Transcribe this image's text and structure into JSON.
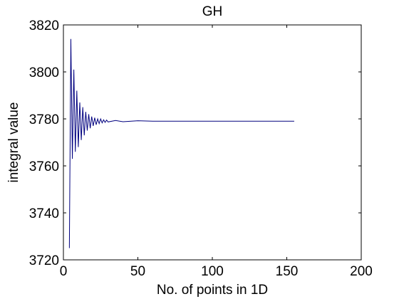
{
  "chart_data": {
    "type": "line",
    "title": "GH",
    "xlabel": "No. of points in 1D",
    "ylabel": "integral value",
    "xlim": [
      0,
      200
    ],
    "ylim": [
      3720,
      3820
    ],
    "xticks": [
      0,
      50,
      100,
      150,
      200
    ],
    "yticks": [
      3720,
      3740,
      3760,
      3780,
      3800,
      3820
    ],
    "grid": false,
    "legend": "none",
    "series": [
      {
        "color": "#00007f",
        "x": [
          4,
          5,
          6,
          7,
          8,
          9,
          10,
          11,
          12,
          13,
          14,
          15,
          16,
          17,
          18,
          19,
          20,
          21,
          22,
          23,
          24,
          25,
          26,
          27,
          28,
          29,
          30,
          35,
          40,
          50,
          60,
          80,
          100,
          120,
          140,
          155
        ],
        "y": [
          3725,
          3814,
          3763,
          3801,
          3766,
          3792,
          3768,
          3787,
          3771,
          3785,
          3773,
          3783,
          3775,
          3782,
          3776,
          3781,
          3777,
          3780.5,
          3777.5,
          3780,
          3778,
          3780,
          3778.3,
          3779.6,
          3778.5,
          3779.5,
          3778.7,
          3779.3,
          3778.8,
          3779.2,
          3779,
          3779,
          3779,
          3779,
          3779,
          3779
        ]
      }
    ]
  }
}
